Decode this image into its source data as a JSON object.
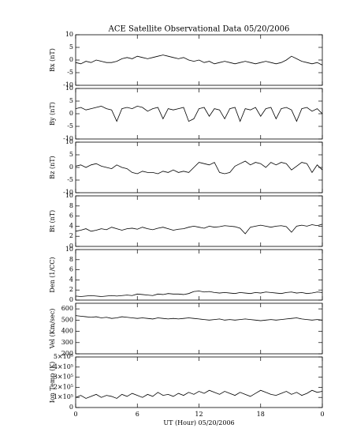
{
  "chart_data": [
    {
      "type": "line",
      "title": "ACE Satellite Observational Data   05/20/2006",
      "ylabel": "Bx (nT)",
      "color": "#000000",
      "xlim": [
        0,
        24
      ],
      "ylim": [
        -10,
        10
      ],
      "yticks": [
        -10,
        -5,
        0,
        5,
        10
      ],
      "x": [
        0,
        0.5,
        1,
        1.5,
        2,
        2.5,
        3,
        3.5,
        4,
        4.5,
        5,
        5.5,
        6,
        6.5,
        7,
        7.5,
        8,
        8.5,
        9,
        9.5,
        10,
        10.5,
        11,
        11.5,
        12,
        12.5,
        13,
        13.5,
        14,
        14.5,
        15,
        15.5,
        16,
        16.5,
        17,
        17.5,
        18,
        18.5,
        19,
        19.5,
        20,
        20.5,
        21,
        21.5,
        22,
        22.5,
        23,
        23.5,
        24
      ],
      "values": [
        -1,
        -1.5,
        -0.5,
        -1,
        0,
        -0.5,
        -1,
        -1,
        -0.5,
        0.5,
        1,
        0.5,
        1.5,
        1,
        0.5,
        1,
        1.5,
        2,
        1.5,
        1,
        0.5,
        1,
        0,
        -0.5,
        0,
        -1,
        -0.5,
        -1.5,
        -1,
        -0.5,
        -1,
        -1.5,
        -1,
        -0.5,
        -1,
        -1.5,
        -1,
        -0.5,
        -1,
        -1.5,
        -1,
        0,
        1.5,
        0.5,
        -0.5,
        -1,
        -1.5,
        -1,
        -2
      ]
    },
    {
      "type": "line",
      "ylabel": "By (nT)",
      "color": "#000000",
      "xlim": [
        0,
        24
      ],
      "ylim": [
        -10,
        10
      ],
      "yticks": [
        -10,
        -5,
        0,
        5,
        10
      ],
      "x": [
        0,
        0.5,
        1,
        1.5,
        2,
        2.5,
        3,
        3.5,
        4,
        4.5,
        5,
        5.5,
        6,
        6.5,
        7,
        7.5,
        8,
        8.5,
        9,
        9.5,
        10,
        10.5,
        11,
        11.5,
        12,
        12.5,
        13,
        13.5,
        14,
        14.5,
        15,
        15.5,
        16,
        16.5,
        17,
        17.5,
        18,
        18.5,
        19,
        19.5,
        20,
        20.5,
        21,
        21.5,
        22,
        22.5,
        23,
        23.5,
        24
      ],
      "values": [
        2,
        2.5,
        1.5,
        2,
        2.5,
        3,
        2,
        1.5,
        -3,
        2,
        2.5,
        2,
        3,
        2.5,
        1,
        2,
        2.5,
        -2,
        2,
        1.5,
        2,
        2.5,
        -3,
        -2,
        2,
        2.5,
        -1,
        2,
        1.5,
        -2,
        2,
        2.5,
        -3,
        2,
        1.5,
        2.5,
        -1,
        2,
        2.5,
        -2,
        2,
        2.5,
        1.5,
        -3,
        2,
        2.5,
        1,
        2,
        0
      ]
    },
    {
      "type": "line",
      "ylabel": "Bz (nT)",
      "color": "#000000",
      "xlim": [
        0,
        24
      ],
      "ylim": [
        -10,
        10
      ],
      "yticks": [
        -10,
        -5,
        0,
        5,
        10
      ],
      "x": [
        0,
        0.5,
        1,
        1.5,
        2,
        2.5,
        3,
        3.5,
        4,
        4.5,
        5,
        5.5,
        6,
        6.5,
        7,
        7.5,
        8,
        8.5,
        9,
        9.5,
        10,
        10.5,
        11,
        11.5,
        12,
        12.5,
        13,
        13.5,
        14,
        14.5,
        15,
        15.5,
        16,
        16.5,
        17,
        17.5,
        18,
        18.5,
        19,
        19.5,
        20,
        20.5,
        21,
        21.5,
        22,
        22.5,
        23,
        23.5,
        24
      ],
      "values": [
        0.5,
        1,
        0,
        1,
        1.5,
        0.5,
        0,
        -0.5,
        1,
        0,
        -0.5,
        -2,
        -2.5,
        -1.5,
        -2,
        -2,
        -2.5,
        -1.5,
        -2,
        -1,
        -2,
        -1.5,
        -2,
        0,
        2,
        1.5,
        1,
        2,
        -2,
        -2.5,
        -2,
        0.5,
        1.5,
        2.5,
        1,
        2,
        1.5,
        0,
        2,
        1,
        2,
        1.5,
        -1,
        0.5,
        2,
        1.5,
        -2,
        1,
        -1
      ]
    },
    {
      "type": "line",
      "ylabel": "Bt (nT)",
      "color": "#000000",
      "xlim": [
        0,
        24
      ],
      "ylim": [
        0,
        10
      ],
      "yticks": [
        0,
        2,
        4,
        6,
        8,
        10
      ],
      "x": [
        0,
        0.5,
        1,
        1.5,
        2,
        2.5,
        3,
        3.5,
        4,
        4.5,
        5,
        5.5,
        6,
        6.5,
        7,
        7.5,
        8,
        8.5,
        9,
        9.5,
        10,
        10.5,
        11,
        11.5,
        12,
        12.5,
        13,
        13.5,
        14,
        14.5,
        15,
        15.5,
        16,
        16.5,
        17,
        17.5,
        18,
        18.5,
        19,
        19.5,
        20,
        20.5,
        21,
        21.5,
        22,
        22.5,
        23,
        23.5,
        24
      ],
      "values": [
        3,
        3.2,
        3.5,
        3,
        3.2,
        3.5,
        3.3,
        3.8,
        3.5,
        3.2,
        3.5,
        3.6,
        3.4,
        3.8,
        3.5,
        3.3,
        3.6,
        3.8,
        3.5,
        3.2,
        3.4,
        3.5,
        3.8,
        4,
        3.8,
        3.6,
        4,
        3.8,
        3.9,
        4.1,
        4,
        3.9,
        3.6,
        2.5,
        3.8,
        4,
        4.2,
        4,
        3.8,
        4,
        4.1,
        3.9,
        2.8,
        4,
        4.2,
        4,
        4.3,
        4.1,
        4.4
      ]
    },
    {
      "type": "line",
      "ylabel": "Den (1/CC)",
      "color": "#000000",
      "xlim": [
        0,
        24
      ],
      "ylim": [
        0,
        10
      ],
      "yticks": [
        0,
        2,
        4,
        6,
        8,
        10
      ],
      "x": [
        0,
        0.5,
        1,
        1.5,
        2,
        2.5,
        3,
        3.5,
        4,
        4.5,
        5,
        5.5,
        6,
        6.5,
        7,
        7.5,
        8,
        8.5,
        9,
        9.5,
        10,
        10.5,
        11,
        11.5,
        12,
        12.5,
        13,
        13.5,
        14,
        14.5,
        15,
        15.5,
        16,
        16.5,
        17,
        17.5,
        18,
        18.5,
        19,
        19.5,
        20,
        20.5,
        21,
        21.5,
        22,
        22.5,
        23,
        23.5,
        24
      ],
      "values": [
        0.8,
        0.7,
        0.8,
        0.9,
        0.8,
        0.7,
        0.8,
        0.9,
        0.8,
        0.9,
        1,
        0.9,
        1.2,
        1.1,
        1,
        0.9,
        1.2,
        1.1,
        1.3,
        1.2,
        1.2,
        1.1,
        1.3,
        1.7,
        1.8,
        1.6,
        1.7,
        1.5,
        1.4,
        1.5,
        1.4,
        1.3,
        1.5,
        1.4,
        1.3,
        1.5,
        1.4,
        1.6,
        1.5,
        1.4,
        1.3,
        1.5,
        1.6,
        1.4,
        1.5,
        1.3,
        1.4,
        1.6,
        1.5
      ]
    },
    {
      "type": "line",
      "ylabel": "Vel (Km/sec)",
      "color": "#000000",
      "xlim": [
        0,
        24
      ],
      "ylim": [
        200,
        650
      ],
      "yticks": [
        200,
        300,
        400,
        500,
        600
      ],
      "x": [
        0,
        0.5,
        1,
        1.5,
        2,
        2.5,
        3,
        3.5,
        4,
        4.5,
        5,
        5.5,
        6,
        6.5,
        7,
        7.5,
        8,
        8.5,
        9,
        9.5,
        10,
        10.5,
        11,
        11.5,
        12,
        12.5,
        13,
        13.5,
        14,
        14.5,
        15,
        15.5,
        16,
        16.5,
        17,
        17.5,
        18,
        18.5,
        19,
        19.5,
        20,
        20.5,
        21,
        21.5,
        22,
        22.5,
        23,
        23.5,
        24
      ],
      "values": [
        540,
        535,
        530,
        525,
        530,
        520,
        525,
        515,
        520,
        530,
        525,
        520,
        515,
        520,
        515,
        510,
        520,
        515,
        510,
        515,
        510,
        515,
        520,
        515,
        510,
        505,
        500,
        505,
        510,
        500,
        505,
        500,
        505,
        510,
        505,
        500,
        495,
        500,
        505,
        500,
        505,
        510,
        515,
        520,
        510,
        505,
        500,
        505,
        500
      ]
    },
    {
      "type": "line",
      "ylabel": "Ion Temp (K)",
      "xlabel": "UT (Hour)   05/20/2006",
      "color": "#000000",
      "xlim": [
        0,
        24
      ],
      "xticks": [
        0,
        6,
        12,
        18,
        {
          "value": 24,
          "label": "0"
        }
      ],
      "ylim": [
        0,
        500000
      ],
      "yticks": [
        0,
        {
          "value": 100000,
          "label": "1×10⁵"
        },
        {
          "value": 200000,
          "label": "2×10⁵"
        },
        {
          "value": 300000,
          "label": "3×10⁵"
        },
        {
          "value": 400000,
          "label": "4×10⁵"
        },
        {
          "value": 500000,
          "label": "5×10⁵"
        }
      ],
      "x": [
        0,
        0.5,
        1,
        1.5,
        2,
        2.5,
        3,
        3.5,
        4,
        4.5,
        5,
        5.5,
        6,
        6.5,
        7,
        7.5,
        8,
        8.5,
        9,
        9.5,
        10,
        10.5,
        11,
        11.5,
        12,
        12.5,
        13,
        13.5,
        14,
        14.5,
        15,
        15.5,
        16,
        16.5,
        17,
        17.5,
        18,
        18.5,
        19,
        19.5,
        20,
        20.5,
        21,
        21.5,
        22,
        22.5,
        23,
        23.5,
        24
      ],
      "values": [
        100000,
        120000,
        90000,
        110000,
        130000,
        100000,
        120000,
        110000,
        90000,
        130000,
        110000,
        140000,
        120000,
        100000,
        130000,
        110000,
        150000,
        120000,
        130000,
        110000,
        140000,
        120000,
        150000,
        130000,
        160000,
        140000,
        170000,
        150000,
        130000,
        160000,
        140000,
        120000,
        150000,
        130000,
        110000,
        140000,
        170000,
        150000,
        130000,
        120000,
        140000,
        160000,
        130000,
        150000,
        120000,
        140000,
        170000,
        150000,
        160000
      ]
    }
  ]
}
